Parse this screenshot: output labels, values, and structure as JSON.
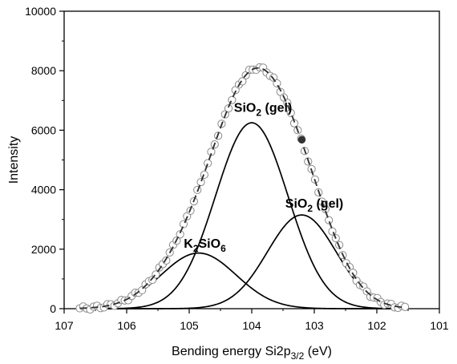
{
  "chart_data": {
    "type": "line",
    "title": "",
    "xlabel": {
      "main": "Bending energy Si2p",
      "sub": "3/2",
      "unit": " (eV)"
    },
    "ylabel": "Intensity",
    "xlim": [
      107,
      101
    ],
    "ylim": [
      0,
      10000
    ],
    "x_reversed": true,
    "x_ticks": [
      107,
      106,
      105,
      104,
      103,
      102,
      101
    ],
    "y_ticks": [
      0,
      2000,
      4000,
      6000,
      8000,
      10000
    ],
    "grid": false,
    "components": [
      {
        "name": "K2SiO6",
        "center": 104.85,
        "height": 1870,
        "sigma": 0.6,
        "label": {
          "main": "K",
          "sub": "2",
          "rest": "SiO",
          "sub2": "6"
        },
        "label_at": {
          "x": 104.75,
          "y": 2050
        }
      },
      {
        "name": "SiO2 (gel)",
        "center": 104.0,
        "height": 6250,
        "sigma": 0.58,
        "label": {
          "main": "SiO",
          "sub": "2",
          "rest": " (gel)",
          "sub2": ""
        },
        "label_at": {
          "x": 103.82,
          "y": 6620
        }
      },
      {
        "name": "SiO2 (gel)",
        "center": 103.2,
        "height": 3150,
        "sigma": 0.55,
        "label": {
          "main": "SiO",
          "sub": "2",
          "rest": " (gel)",
          "sub2": ""
        },
        "label_at": {
          "x": 103.0,
          "y": 3400
        }
      }
    ],
    "envelope": {
      "style": "dashed",
      "x_from": 106.75,
      "x_to": 101.55
    },
    "measured_points": {
      "x_from": 106.75,
      "x_to": 101.55,
      "count": 95,
      "highlight_x": 103.2,
      "highlight_y": 5680
    }
  }
}
